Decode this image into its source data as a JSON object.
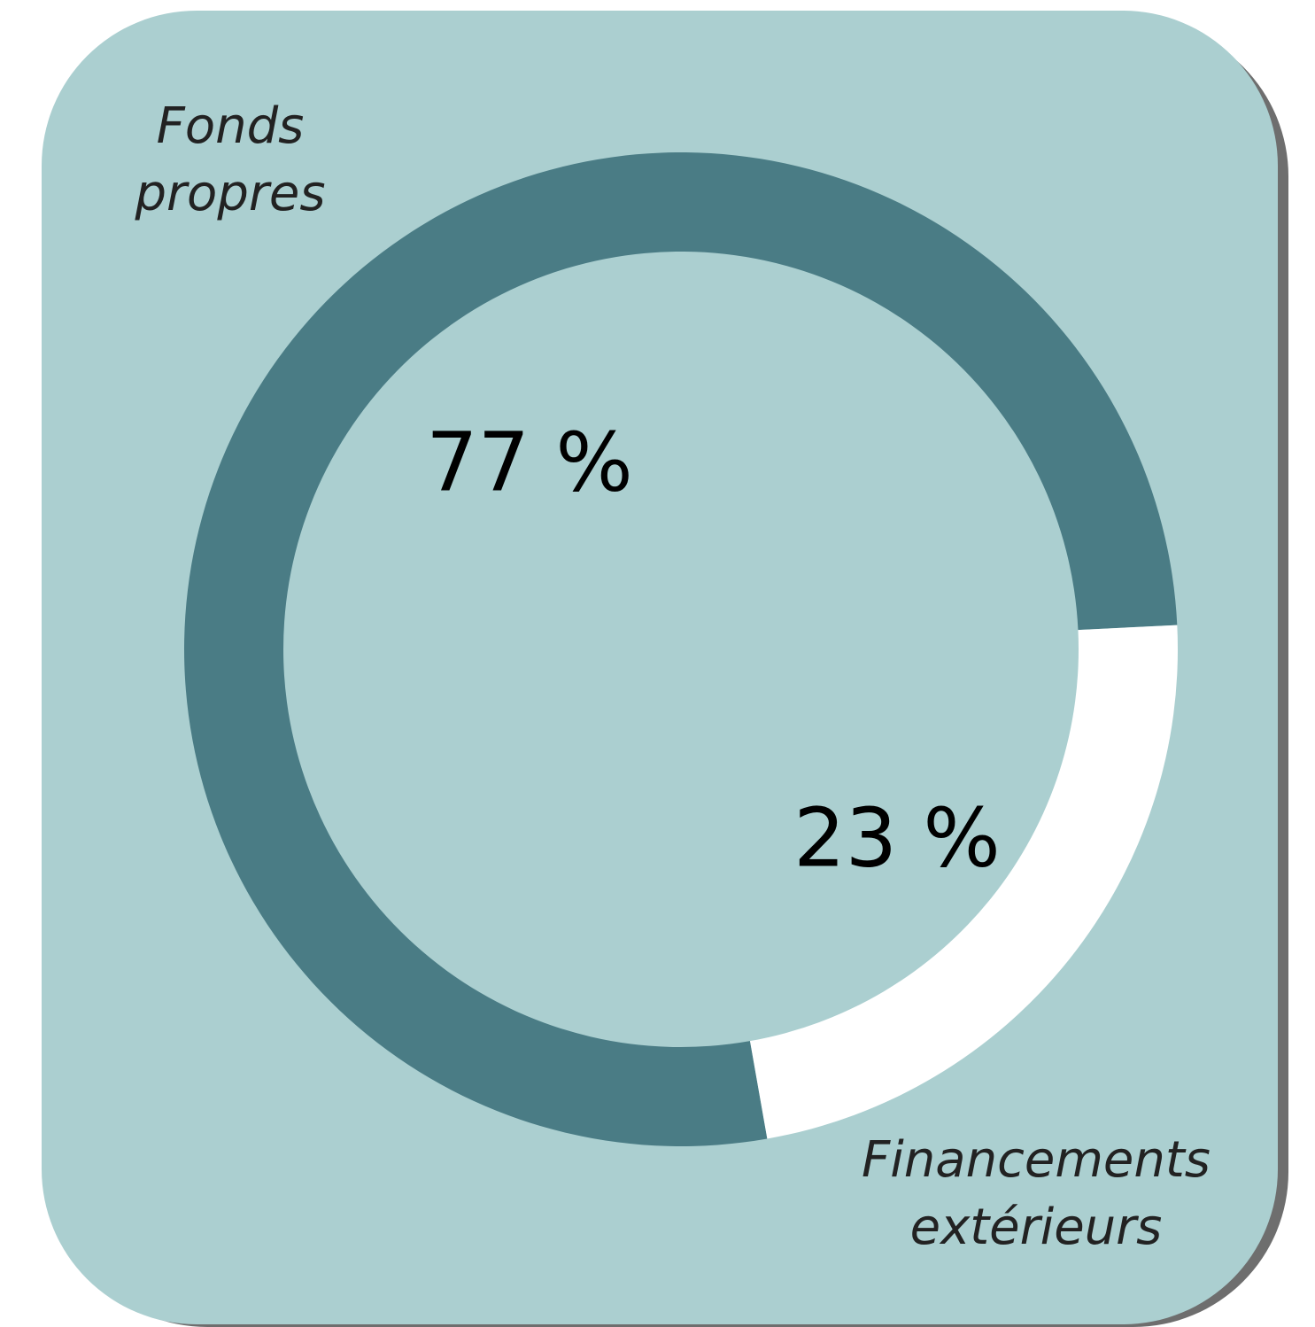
{
  "chart_data": {
    "type": "donut",
    "categories": [
      "Fonds propres",
      "Financements extérieurs"
    ],
    "values": [
      77,
      23
    ],
    "value_labels": [
      "77 %",
      "23 %"
    ],
    "colors": [
      "#4a7c85",
      "#ffffff"
    ]
  }
}
